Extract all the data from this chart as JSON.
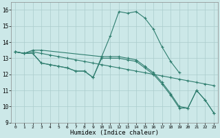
{
  "title": "",
  "xlabel": "Humidex (Indice chaleur)",
  "xlim": [
    -0.5,
    23.5
  ],
  "ylim": [
    9,
    16.5
  ],
  "yticks": [
    9,
    10,
    11,
    12,
    13,
    14,
    15,
    16
  ],
  "xticks": [
    0,
    1,
    2,
    3,
    4,
    5,
    6,
    7,
    8,
    9,
    10,
    11,
    12,
    13,
    14,
    15,
    16,
    17,
    18,
    19,
    20,
    21,
    22,
    23
  ],
  "background_color": "#cce8e8",
  "grid_color": "#aacccc",
  "line_color": "#2e7d6e",
  "series": [
    {
      "x": [
        0,
        1,
        2,
        3,
        10,
        11,
        12,
        13,
        14,
        15,
        16,
        17,
        18,
        19
      ],
      "y": [
        13.4,
        13.3,
        13.5,
        13.5,
        13.1,
        14.4,
        15.9,
        15.8,
        15.9,
        15.5,
        14.8,
        13.7,
        12.8,
        12.1
      ]
    },
    {
      "x": [
        0,
        1,
        2,
        3,
        4,
        5,
        6,
        7,
        8,
        9,
        10,
        11,
        12,
        13,
        14,
        15,
        16,
        17,
        18,
        19,
        20,
        21,
        22,
        23
      ],
      "y": [
        13.4,
        13.3,
        13.4,
        13.3,
        13.2,
        13.1,
        13.0,
        12.9,
        12.8,
        12.7,
        12.6,
        12.5,
        12.4,
        12.3,
        12.2,
        12.1,
        12.0,
        11.9,
        11.8,
        11.7,
        11.6,
        11.5,
        11.4,
        11.3
      ]
    },
    {
      "x": [
        0,
        1,
        2,
        3,
        4,
        5,
        6,
        7,
        8,
        9,
        10,
        11,
        12,
        13,
        14,
        15,
        16,
        17,
        18,
        19,
        20,
        21,
        22,
        23
      ],
      "y": [
        13.4,
        13.3,
        13.3,
        12.7,
        12.6,
        12.5,
        12.4,
        12.2,
        12.2,
        11.8,
        13.1,
        13.1,
        13.1,
        13.0,
        12.9,
        12.5,
        12.1,
        11.5,
        10.8,
        10.0,
        9.9,
        11.0,
        10.4,
        9.6
      ]
    },
    {
      "x": [
        0,
        1,
        2,
        3,
        4,
        5,
        6,
        7,
        8,
        9,
        10,
        11,
        12,
        13,
        14,
        15,
        16,
        17,
        18,
        19,
        20,
        21,
        22,
        23
      ],
      "y": [
        13.4,
        13.3,
        13.3,
        12.7,
        12.6,
        12.5,
        12.4,
        12.2,
        12.2,
        11.8,
        13.0,
        13.0,
        13.0,
        12.9,
        12.8,
        12.4,
        12.0,
        11.4,
        10.7,
        9.9,
        9.9,
        11.0,
        10.4,
        9.6
      ]
    }
  ]
}
